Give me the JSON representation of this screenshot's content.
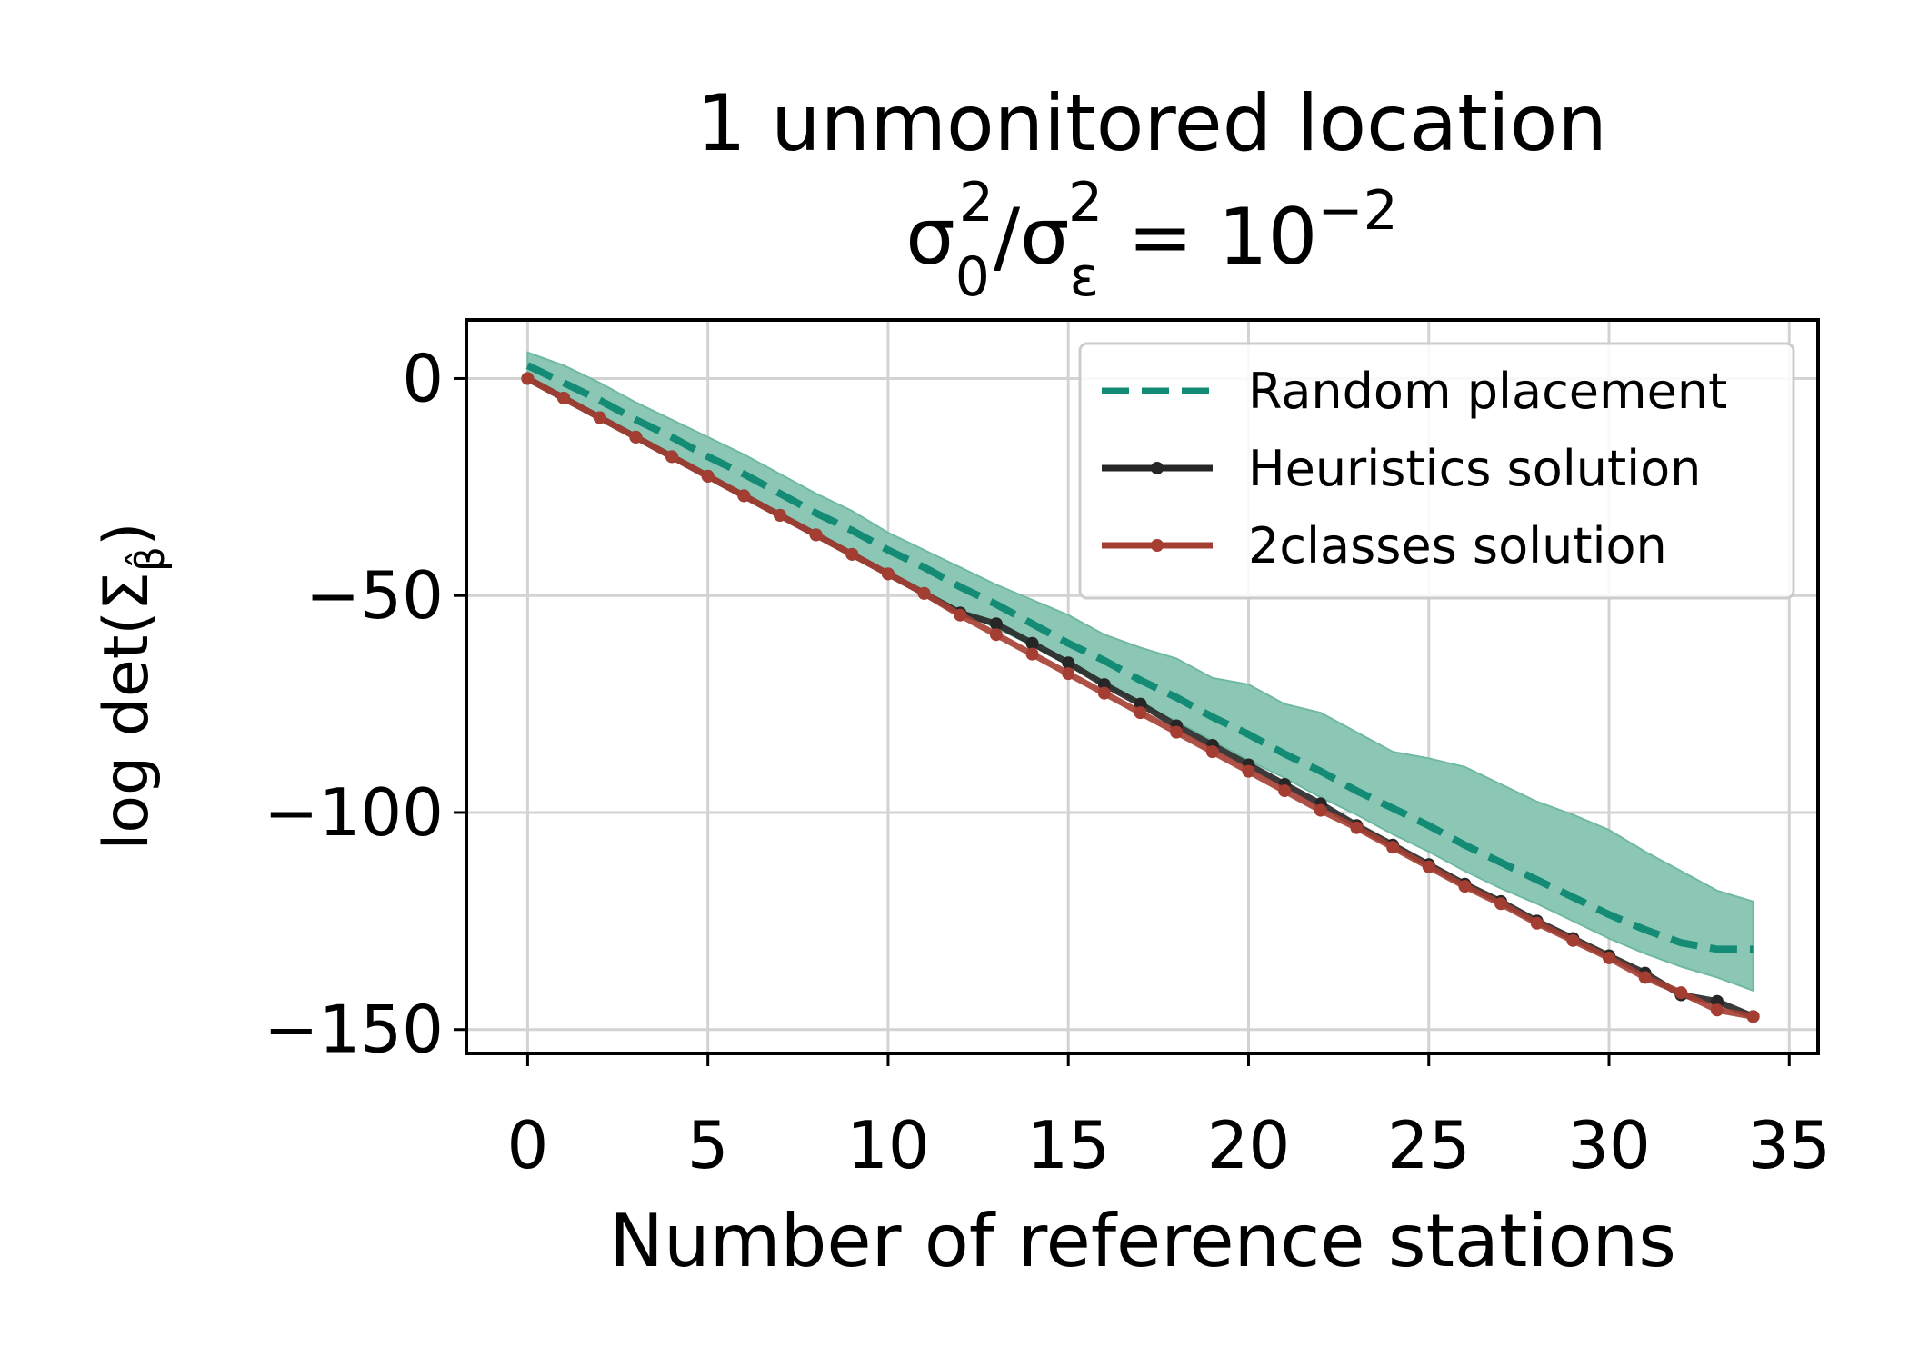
{
  "chart_data": {
    "type": "line",
    "title_line1": "1 unmonitored location",
    "title_line2": {
      "sigma": "σ",
      "sub_0": "0",
      "sup_1": "2",
      "slash": "/σ",
      "sub_eps": "ε",
      "sup_2": "2",
      "equals": " = 10",
      "exponent": "−2"
    },
    "xlabel": "Number of reference stations",
    "ylabel": {
      "prefix": "log det(Σ",
      "sub": "β̂",
      "suffix": ")"
    },
    "xlim": [
      -1.7,
      35.8
    ],
    "ylim": [
      -155.5,
      13.5
    ],
    "x_ticks": [
      0,
      5,
      10,
      15,
      20,
      25,
      30,
      35
    ],
    "x_tick_labels": [
      "0",
      "5",
      "10",
      "15",
      "20",
      "25",
      "30",
      "35"
    ],
    "y_ticks": [
      0,
      -50,
      -100,
      -150
    ],
    "y_tick_labels": [
      "0",
      "−50",
      "−100",
      "−150"
    ],
    "grid": true,
    "legend_position": "top-right",
    "colors": {
      "random": "#148b75",
      "random_band": "#8cc7b6",
      "heuristics": "#262626",
      "twoclasses": "#a53e32"
    },
    "x": [
      0,
      1,
      2,
      3,
      4,
      5,
      6,
      7,
      8,
      9,
      10,
      11,
      12,
      13,
      14,
      15,
      16,
      17,
      18,
      19,
      20,
      21,
      22,
      23,
      24,
      25,
      26,
      27,
      28,
      29,
      30,
      31,
      32,
      33,
      34
    ],
    "series": [
      {
        "name": "Random placement",
        "style": "dashed",
        "values": [
          3,
          -1,
          -5,
          -9.5,
          -13.5,
          -18,
          -22,
          -26.5,
          -31,
          -35,
          -39.5,
          -43.5,
          -48,
          -52,
          -56.5,
          -61,
          -65,
          -69.5,
          -73.5,
          -78,
          -82,
          -86.5,
          -90.5,
          -95,
          -99,
          -103,
          -107.5,
          -111.5,
          -115.5,
          -119.5,
          -123.5,
          -127,
          -130,
          -131.5,
          -131.5
        ],
        "band_upper": [
          6,
          3,
          -1,
          -5.5,
          -9.5,
          -13.5,
          -17.5,
          -22,
          -26.5,
          -30.5,
          -35.5,
          -39.5,
          -43.5,
          -47.5,
          -51,
          -54.5,
          -59,
          -62,
          -64.5,
          -69,
          -70.5,
          -75,
          -77,
          -81.5,
          -86,
          -87.5,
          -89.5,
          -93.5,
          -97.5,
          -100.5,
          -104,
          -109,
          -113.5,
          -118,
          -120.5
        ],
        "band_lower": [
          0.5,
          -4,
          -8.5,
          -13,
          -17.5,
          -22,
          -26.5,
          -31,
          -35.5,
          -40,
          -44.5,
          -49,
          -53.5,
          -57.5,
          -61.5,
          -66,
          -70.5,
          -75,
          -79,
          -83.5,
          -88,
          -92,
          -96.5,
          -100.5,
          -105,
          -109,
          -113.5,
          -117.5,
          -121,
          -125,
          -129,
          -132.5,
          -135.5,
          -138,
          -141
        ]
      },
      {
        "name": "Heuristics solution",
        "style": "solid-dot",
        "values": [
          0,
          -4.5,
          -9,
          -13.5,
          -18,
          -22.5,
          -27,
          -31.5,
          -36,
          -40.5,
          -45,
          -49.5,
          -54,
          -56.5,
          -61,
          -65.5,
          -70.5,
          -75,
          -80,
          -84.5,
          -89,
          -93.5,
          -98,
          -103,
          -107.5,
          -112,
          -116.5,
          -120.5,
          -125,
          -129,
          -133,
          -137,
          -142,
          -143.5,
          -147
        ]
      },
      {
        "name": "2classes solution",
        "style": "solid-dot",
        "values": [
          0,
          -4.5,
          -9,
          -13.5,
          -18,
          -22.5,
          -27,
          -31.5,
          -36,
          -40.5,
          -45,
          -49.5,
          -54.5,
          -59,
          -63.5,
          -68,
          -72.5,
          -77,
          -81.5,
          -86,
          -90.5,
          -95,
          -99.5,
          -103.5,
          -108,
          -112.5,
          -117,
          -121,
          -125.5,
          -129.5,
          -133.5,
          -138,
          -141.5,
          -145.5,
          -147
        ]
      }
    ]
  }
}
